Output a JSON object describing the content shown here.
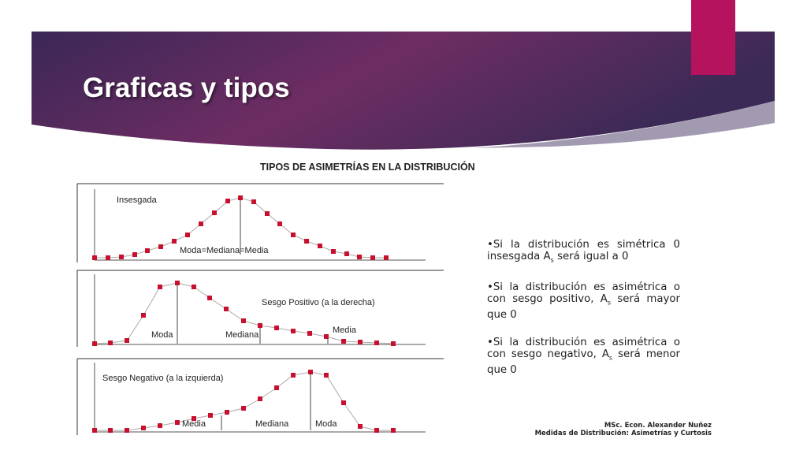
{
  "header": {
    "title": "Graficas y tipos"
  },
  "figure": {
    "title": "TIPOS DE ASIMETRÍAS EN LA DISTRIBUCIÓN",
    "panels": [
      {
        "label": "Insesgada",
        "markers": [
          "Moda=Mediana=Media"
        ]
      },
      {
        "label": "Sesgo Positivo (a la derecha)",
        "markers": [
          "Moda",
          "Mediana",
          "Media"
        ]
      },
      {
        "label": "Sesgo Negativo (a la izquierda)",
        "markers": [
          "Media",
          "Mediana",
          "Moda"
        ]
      }
    ]
  },
  "bullets": [
    {
      "before": "•Si la distribución es simétrica 0 insesgada A",
      "sub": "s",
      "after": " será igual a 0"
    },
    {
      "before": "•Si la distribución es asimétrica o con sesgo positivo, A",
      "sub": "s",
      "after": " será mayor que 0"
    },
    {
      "before": "•Si la distribución es asimétrica o con sesgo negativo, A",
      "sub": "s",
      "after": " será menor que 0"
    }
  ],
  "footer": {
    "author": "MSc. Econ. Alexander Nuñez",
    "subject": "Medidas de Distribución: Asimetrías y Curtosis"
  }
}
